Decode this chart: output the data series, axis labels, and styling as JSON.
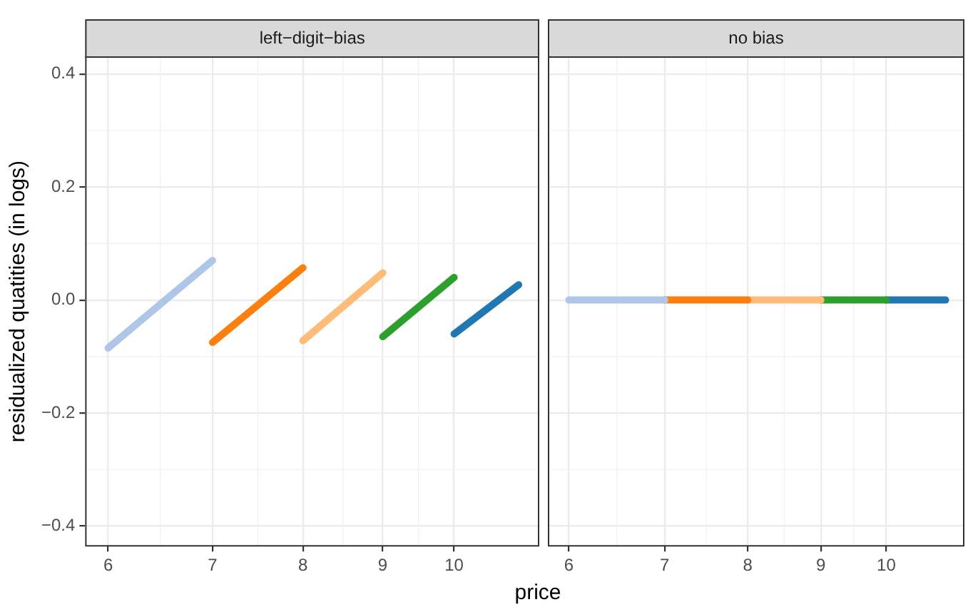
{
  "chart_data": [
    {
      "type": "line",
      "title": "left−digit−bias",
      "xlabel": "price",
      "ylabel": "residualized quatities (in logs)",
      "log": "x",
      "xlim": [
        5.82,
        11.34
      ],
      "xticks": [
        6,
        7,
        8,
        9,
        10
      ],
      "ylim": [
        -0.435,
        0.43
      ],
      "yticks": [
        {
          "value": -0.4,
          "label": "−0.4"
        },
        {
          "value": -0.2,
          "label": "−0.2"
        },
        {
          "value": 0,
          "label": "0.0"
        },
        0.2,
        0.4
      ],
      "grid": true,
      "legend": false,
      "marker": "none",
      "line_style": "solid",
      "series": [
        {
          "color": "#aec7e8",
          "x": [
            6,
            7
          ],
          "values": [
            -0.085,
            0.07
          ]
        },
        {
          "color": "#ff7f0e",
          "x": [
            7,
            8
          ],
          "values": [
            -0.075,
            0.057
          ]
        },
        {
          "color": "#ffbb78",
          "x": [
            8,
            9
          ],
          "values": [
            -0.072,
            0.048
          ]
        },
        {
          "color": "#2ca02c",
          "x": [
            9,
            10
          ],
          "values": [
            -0.065,
            0.04
          ]
        },
        {
          "color": "#1f77b4",
          "x": [
            10,
            11
          ],
          "values": [
            -0.06,
            0.027
          ]
        }
      ]
    },
    {
      "type": "line",
      "title": "no bias",
      "log": "x",
      "xlim": [
        5.82,
        11.34
      ],
      "xticks": [
        6,
        7,
        8,
        9,
        10
      ],
      "ylim": [
        -0.435,
        0.43
      ],
      "yticks": [
        -0.4,
        -0.2,
        0,
        0.2,
        0.4
      ],
      "tick_labels": "x",
      "grid": true,
      "legend": false,
      "marker": "none",
      "line_style": "solid",
      "series": [
        {
          "color": "#aec7e8",
          "x": [
            6,
            7
          ],
          "values": [
            0,
            0
          ]
        },
        {
          "color": "#ff7f0e",
          "x": [
            7,
            8
          ],
          "values": [
            0,
            0
          ]
        },
        {
          "color": "#ffbb78",
          "x": [
            8,
            9
          ],
          "values": [
            0,
            0
          ]
        },
        {
          "color": "#2ca02c",
          "x": [
            9,
            10
          ],
          "values": [
            0,
            0
          ]
        },
        {
          "color": "#1f77b4",
          "x": [
            10,
            11
          ],
          "values": [
            0,
            0
          ]
        }
      ]
    }
  ]
}
